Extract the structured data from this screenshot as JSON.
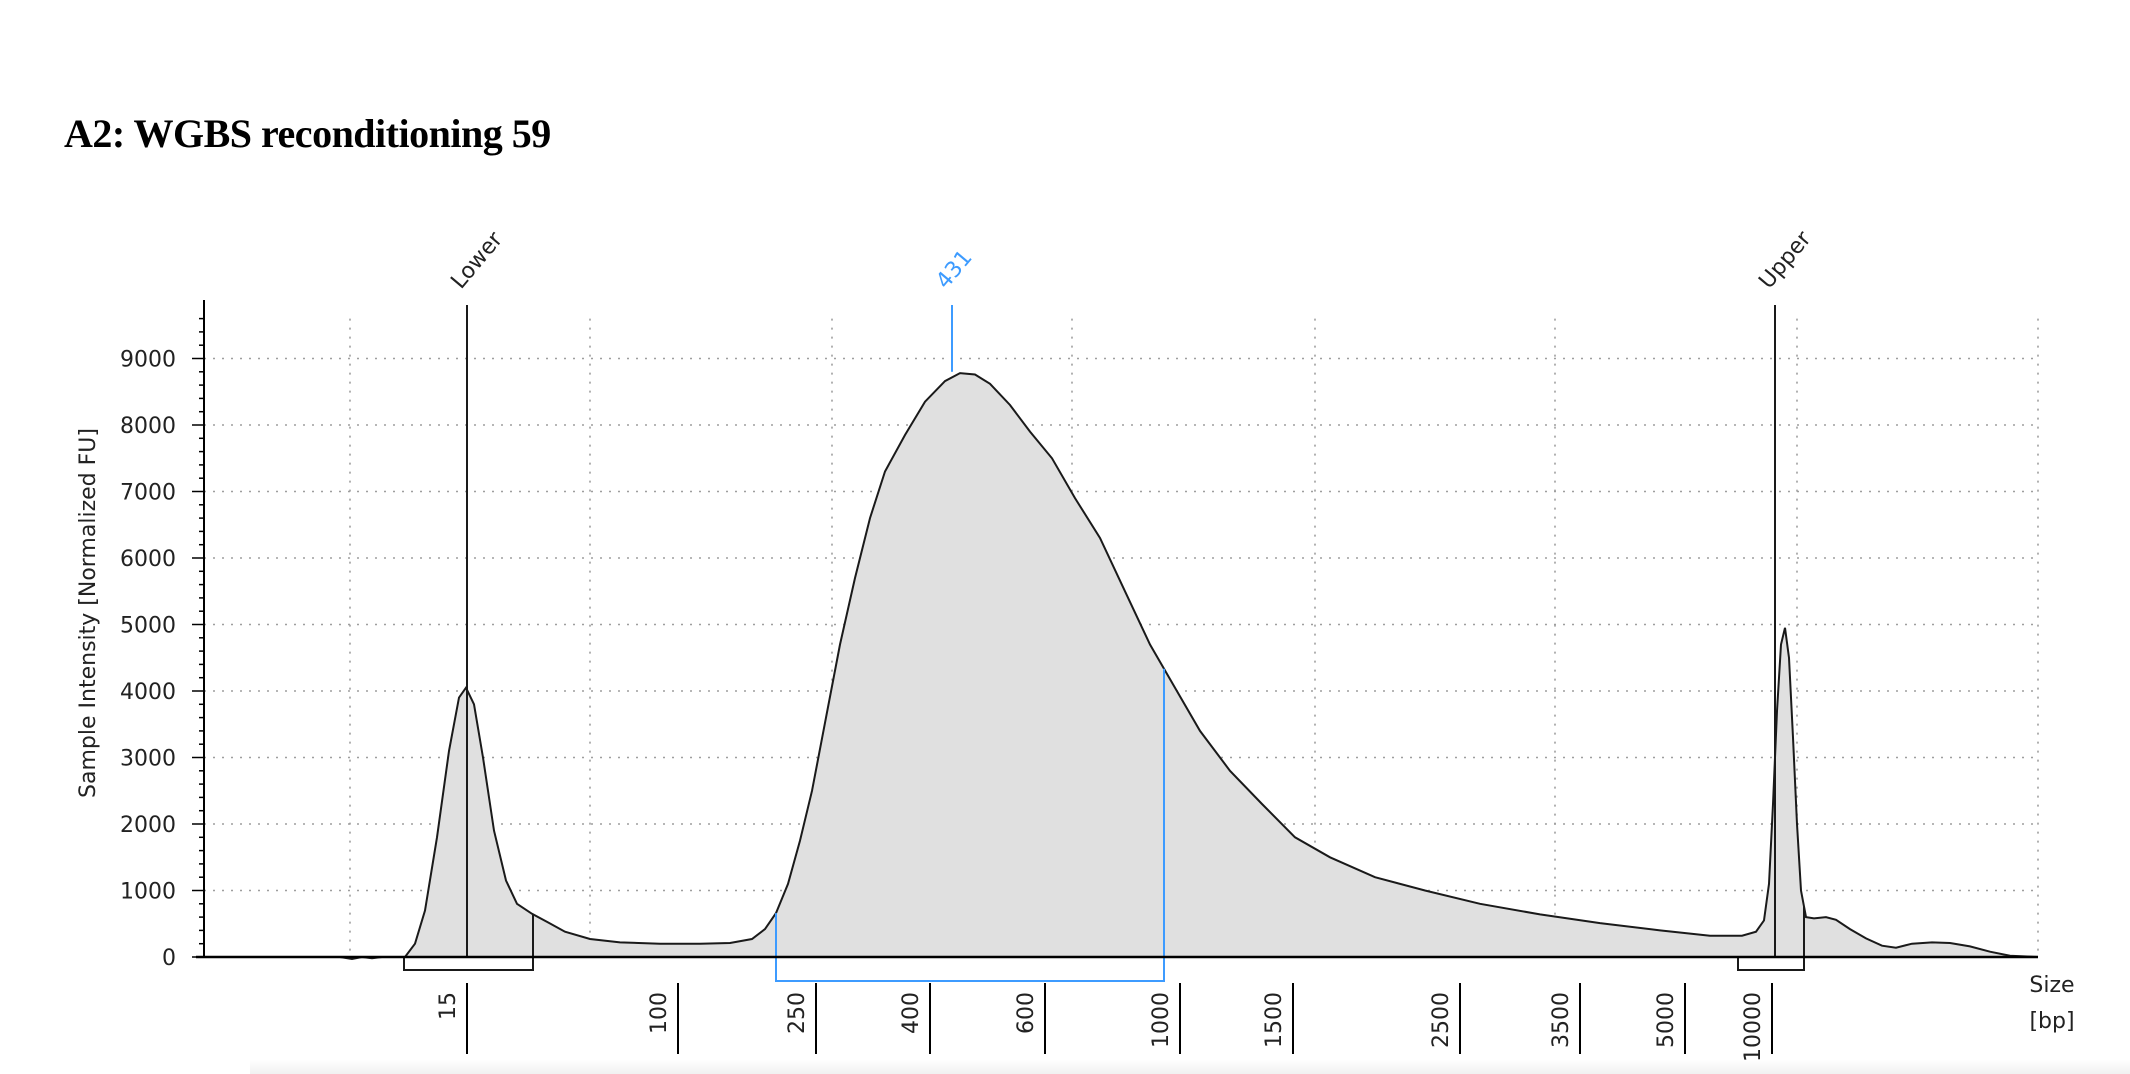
{
  "title": "A2: WGBS reconditioning 59",
  "colors": {
    "trace": "#1a1a1a",
    "fill": "#e0e0e0",
    "accent": "#3d9bff",
    "grid": "#9e9e9e"
  },
  "chart_data": {
    "type": "area",
    "title": "A2: WGBS reconditioning 59",
    "ylabel": "Sample Intensity [Normalized FU]",
    "xlabel_lines": [
      "Size",
      "[bp]"
    ],
    "ylim": [
      0,
      9600
    ],
    "y_ticks": [
      0,
      1000,
      2000,
      3000,
      4000,
      5000,
      6000,
      7000,
      8000,
      9000
    ],
    "x_ticks": [
      "15",
      "100",
      "250",
      "400",
      "600",
      "1000",
      "1500",
      "2500",
      "3500",
      "5000",
      "10000"
    ],
    "grid": true,
    "peaks": [
      {
        "label": "Lower",
        "size_bp": 15,
        "intensity": 4050,
        "highlight": false
      },
      {
        "label": "431",
        "size_bp": 431,
        "intensity": 8800,
        "highlight": true
      },
      {
        "label": "Upper",
        "size_bp": 10000,
        "intensity": 4950,
        "highlight": false
      }
    ],
    "regions": [
      {
        "from": "15",
        "to": "~35",
        "highlight": false
      },
      {
        "from": "~200",
        "to": "1000",
        "highlight": true
      },
      {
        "from": "~9000",
        "to": "~11000",
        "highlight": false
      }
    ]
  }
}
